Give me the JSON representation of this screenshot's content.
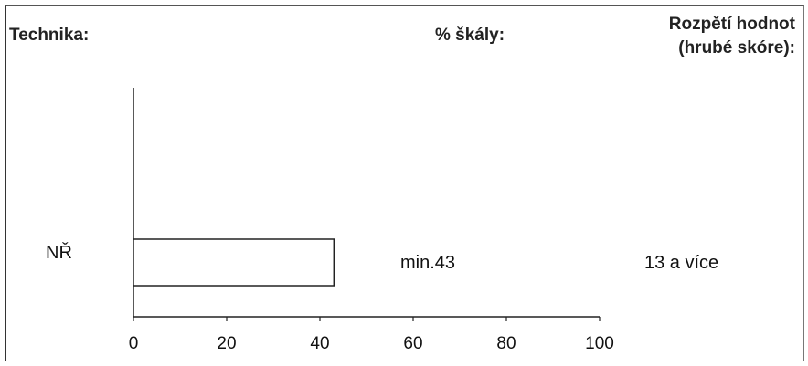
{
  "header": {
    "technique_label": "Technika:",
    "scale_percent_label": "% škály:",
    "range_label_line1": "Rozpětí hodnot",
    "range_label_line2": "(hrubé skóre):"
  },
  "row": {
    "label": "NŘ",
    "scale_percent": "min.43",
    "raw_score_range": "13 a více"
  },
  "chart_data": {
    "type": "bar",
    "orientation": "horizontal",
    "categories": [
      "NŘ"
    ],
    "values": [
      43
    ],
    "xlim": [
      0,
      100
    ],
    "xticks": [
      0,
      20,
      40,
      60,
      80,
      100
    ],
    "bar_fill": "#ffffff",
    "bar_stroke": "#222222",
    "grid": false,
    "legend": "none"
  }
}
